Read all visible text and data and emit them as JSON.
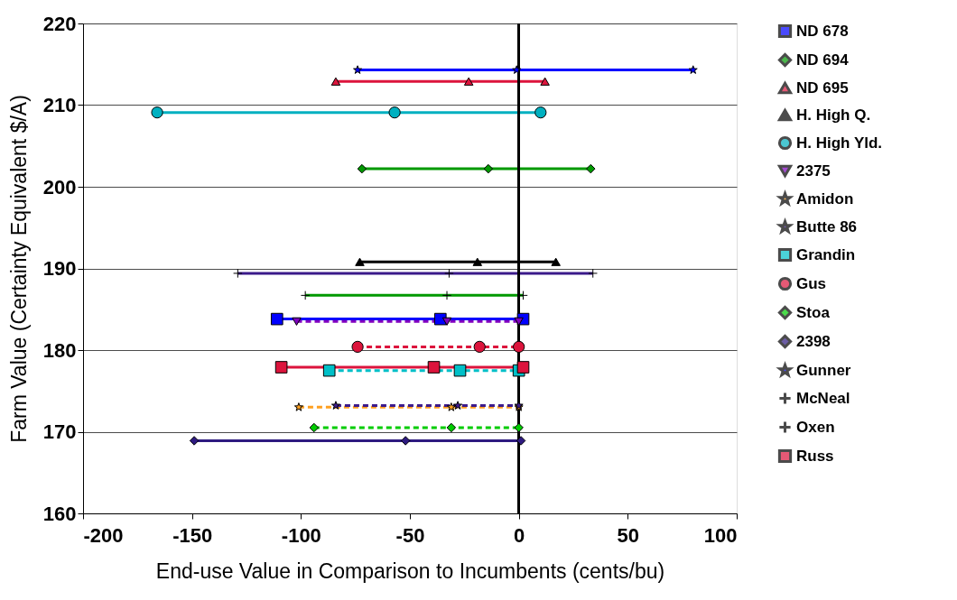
{
  "chart_data": {
    "type": "line",
    "xlabel": "End-use Value in Comparison to Incumbents (cents/bu)",
    "ylabel": "Farm Value (Certainty Equivalent $/A)",
    "xlim": [
      -200,
      100
    ],
    "xticks": [
      -200,
      -150,
      -100,
      -50,
      0,
      50,
      100
    ],
    "ylim": [
      160,
      220
    ],
    "yticks": [
      160,
      170,
      180,
      190,
      200,
      210,
      220
    ],
    "grid": "y",
    "legend": "right",
    "ref_lines": [
      {
        "axis": "x",
        "value": 0,
        "color": "#000000"
      }
    ],
    "series": [
      {
        "name": "ND 678",
        "color": "#0000ff",
        "marker": "square",
        "line_style": "solid",
        "x": [
          -111,
          -36,
          2
        ],
        "values": [
          183.8,
          183.8,
          183.8
        ]
      },
      {
        "name": "ND 694",
        "color": "#009900",
        "marker": "diamond",
        "line_style": "solid",
        "x": [
          -72,
          -14,
          33
        ],
        "values": [
          202.2,
          202.2,
          202.2
        ]
      },
      {
        "name": "ND 695",
        "color": "#dc143c",
        "marker": "triangle",
        "line_style": "solid",
        "x": [
          -84,
          -23,
          12
        ],
        "values": [
          212.9,
          212.9,
          212.9
        ]
      },
      {
        "name": "H. High Q.",
        "color": "#000000",
        "marker": "triangle",
        "line_style": "solid",
        "x": [
          -73,
          -19,
          17
        ],
        "values": [
          190.8,
          190.8,
          190.8
        ]
      },
      {
        "name": "H. High Yld.",
        "color": "#00b0c0",
        "marker": "circle",
        "line_style": "solid",
        "x": [
          -166,
          -57,
          10
        ],
        "values": [
          209.1,
          209.1,
          209.1
        ]
      },
      {
        "name": "2375",
        "color": "#8000c0",
        "marker": "triangle-down",
        "line_style": "dashed",
        "x": [
          -102,
          -33,
          0
        ],
        "values": [
          183.5,
          183.5,
          183.5
        ]
      },
      {
        "name": "Amidon",
        "color": "#ffa020",
        "marker": "star",
        "line_style": "dashed",
        "x": [
          -101,
          -31,
          0
        ],
        "values": [
          173.0,
          173.0,
          173.0
        ]
      },
      {
        "name": "Butte 86",
        "color": "#3d1a8c",
        "marker": "star",
        "line_style": "dashed",
        "x": [
          -84,
          -28,
          0
        ],
        "values": [
          173.2,
          173.2,
          173.2
        ]
      },
      {
        "name": "Grandin",
        "color": "#00c0c8",
        "marker": "square",
        "line_style": "dashed",
        "x": [
          -87,
          -27,
          0
        ],
        "values": [
          177.5,
          177.5,
          177.5
        ]
      },
      {
        "name": "Gus",
        "color": "#dc143c",
        "marker": "circle",
        "line_style": "dashed",
        "x": [
          -74,
          -18,
          0
        ],
        "values": [
          180.4,
          180.4,
          180.4
        ]
      },
      {
        "name": "Stoa",
        "color": "#00cc00",
        "marker": "diamond",
        "line_style": "dashed",
        "x": [
          -94,
          -31,
          0
        ],
        "values": [
          170.5,
          170.5,
          170.5
        ]
      },
      {
        "name": "2398",
        "color": "#2e1a80",
        "marker": "diamond",
        "line_style": "solid",
        "x": [
          -149,
          -52,
          1
        ],
        "values": [
          168.9,
          168.9,
          168.9
        ]
      },
      {
        "name": "Gunner",
        "color": "#0000ff",
        "marker": "star",
        "line_style": "solid",
        "x": [
          -74,
          -1,
          80
        ],
        "values": [
          214.3,
          214.3,
          214.3
        ]
      },
      {
        "name": "McNeal",
        "color": "#3b1a8a",
        "marker": "cross",
        "line_style": "solid",
        "x": [
          -129,
          -32,
          34
        ],
        "values": [
          189.4,
          189.4,
          189.4
        ]
      },
      {
        "name": "Oxen",
        "color": "#009900",
        "marker": "cross",
        "line_style": "solid",
        "x": [
          -98,
          -33,
          2
        ],
        "values": [
          186.7,
          186.7,
          186.7
        ]
      },
      {
        "name": "Russ",
        "color": "#dc143c",
        "marker": "square",
        "line_style": "solid",
        "x": [
          -109,
          -39,
          2
        ],
        "values": [
          177.9,
          177.9,
          177.9
        ]
      }
    ]
  }
}
